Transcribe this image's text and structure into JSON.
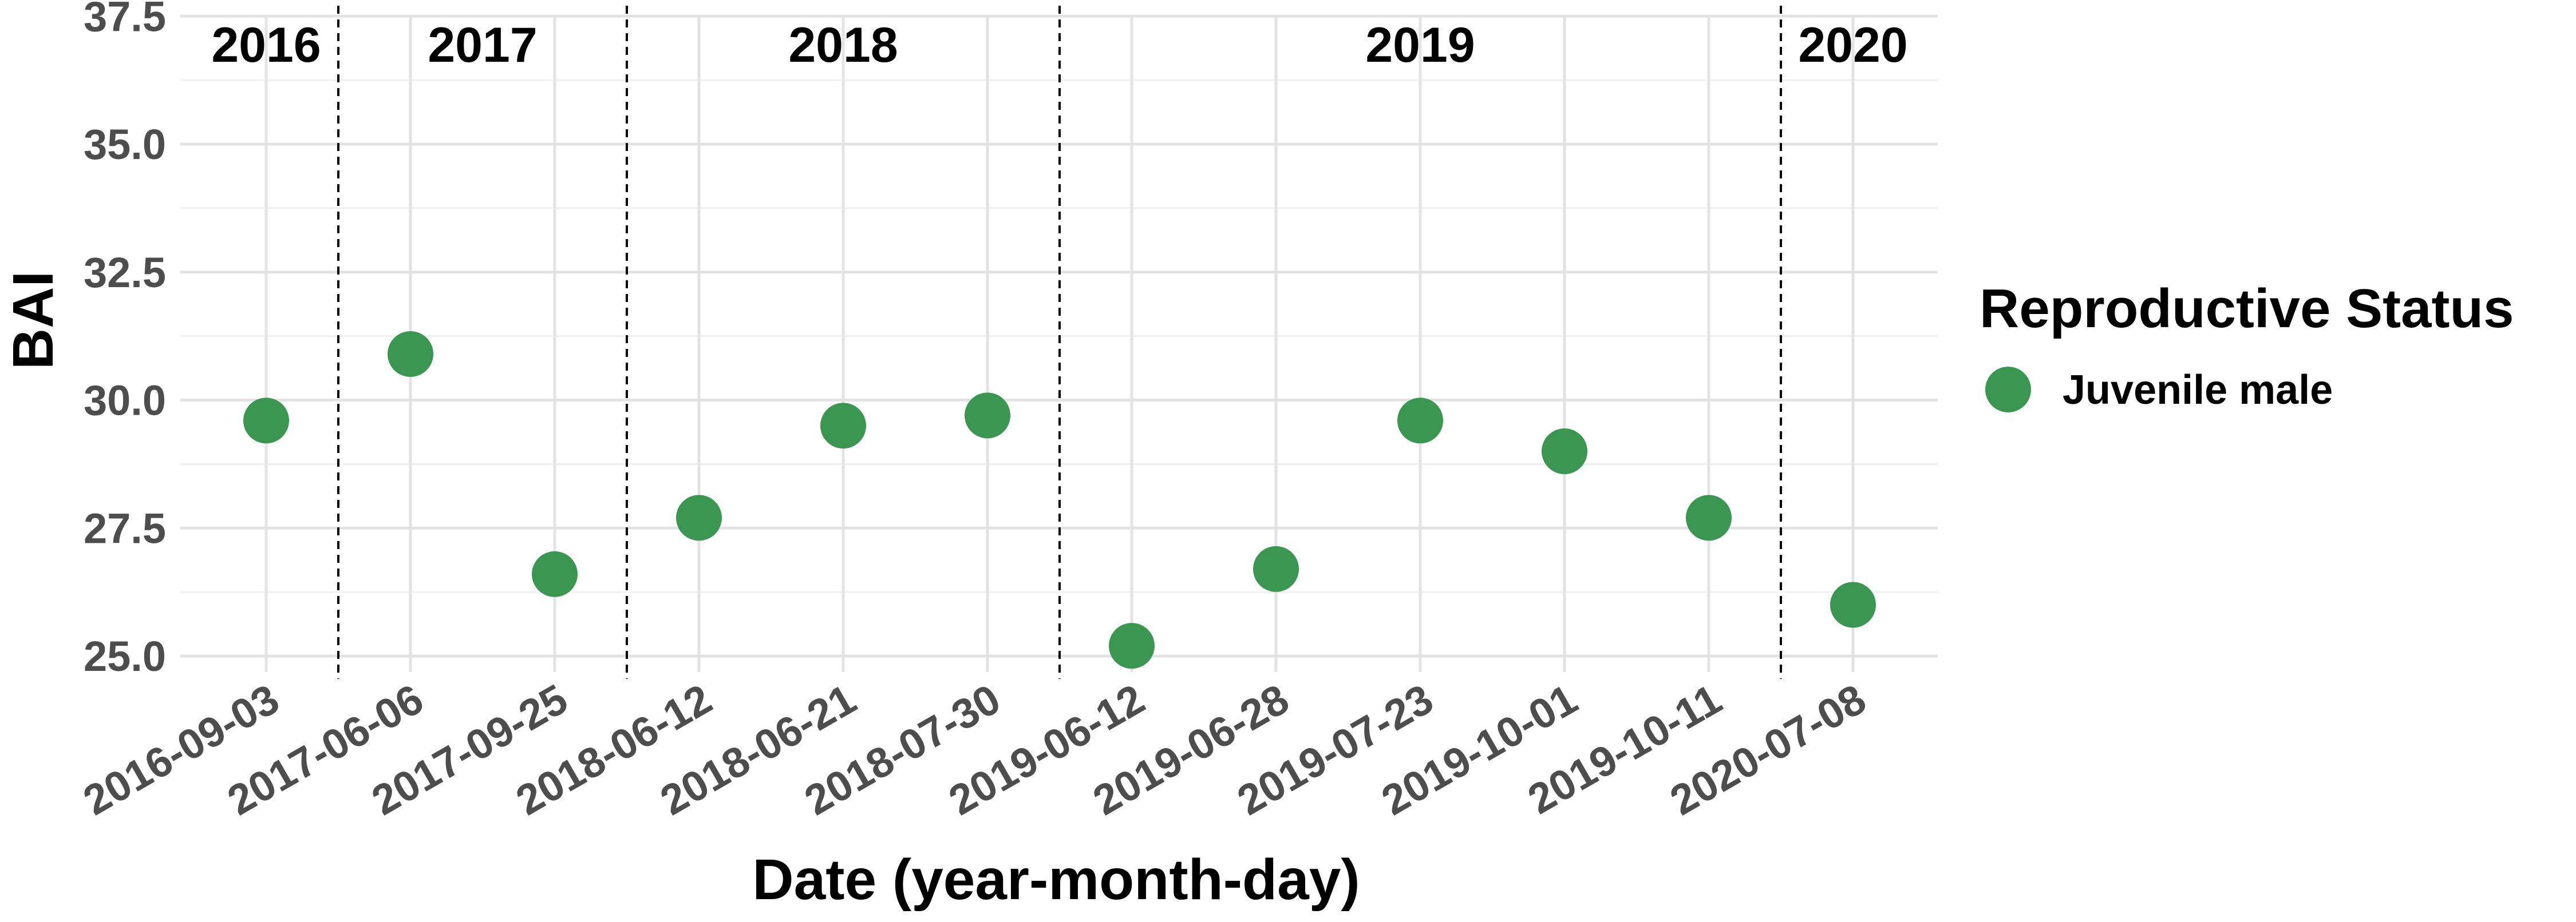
{
  "chart_data": {
    "type": "scatter",
    "xlabel": "Date (year-month-day)",
    "ylabel": "BAI",
    "ylim": [
      24.5,
      37.5
    ],
    "yticks": [
      "25.0",
      "27.5",
      "30.0",
      "32.5",
      "35.0",
      "37.5"
    ],
    "ytick_values": [
      25.0,
      27.5,
      30.0,
      32.5,
      35.0,
      37.5
    ],
    "categories": [
      "2016-09-03",
      "2017-06-06",
      "2017-09-25",
      "2018-06-12",
      "2018-06-21",
      "2018-07-30",
      "2019-06-12",
      "2019-06-28",
      "2019-07-23",
      "2019-10-01",
      "2019-10-11",
      "2020-07-08"
    ],
    "series": [
      {
        "name": "Juvenile male",
        "color": "#3a9650",
        "values": [
          29.6,
          30.9,
          26.6,
          27.7,
          29.5,
          29.7,
          25.2,
          26.7,
          29.6,
          29.0,
          27.7,
          26.0
        ]
      }
    ],
    "year_groups": [
      {
        "label": "2016",
        "first": 0,
        "last": 0
      },
      {
        "label": "2017",
        "first": 1,
        "last": 2
      },
      {
        "label": "2018",
        "first": 3,
        "last": 5
      },
      {
        "label": "2019",
        "first": 6,
        "last": 10
      },
      {
        "label": "2020",
        "first": 11,
        "last": 11
      }
    ],
    "grid": true,
    "legend": {
      "title": "Reproductive Status",
      "position": "right"
    }
  }
}
